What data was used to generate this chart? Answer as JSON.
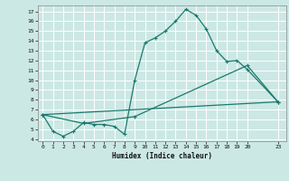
{
  "title": "",
  "xlabel": "Humidex (Indice chaleur)",
  "bg_color": "#cce8e4",
  "grid_color": "#ffffff",
  "line_color": "#1a7a6e",
  "xlim": [
    -0.5,
    23.8
  ],
  "ylim": [
    3.8,
    17.6
  ],
  "yticks": [
    4,
    5,
    6,
    7,
    8,
    9,
    10,
    11,
    12,
    13,
    14,
    15,
    16,
    17
  ],
  "xticks": [
    0,
    1,
    2,
    3,
    4,
    5,
    6,
    7,
    8,
    9,
    10,
    11,
    12,
    13,
    14,
    15,
    16,
    17,
    18,
    19,
    20,
    23
  ],
  "line1_x": [
    0,
    1,
    2,
    3,
    4,
    5,
    6,
    7,
    8,
    9,
    10,
    11,
    12,
    13,
    14,
    15,
    16,
    17,
    18,
    19,
    20,
    23
  ],
  "line1_y": [
    6.5,
    4.8,
    4.3,
    4.8,
    5.7,
    5.5,
    5.5,
    5.3,
    4.5,
    10.0,
    13.8,
    14.3,
    15.0,
    16.0,
    17.2,
    16.6,
    15.2,
    13.0,
    11.9,
    12.0,
    11.1,
    7.8
  ],
  "line2_x": [
    0,
    4,
    9,
    20,
    23
  ],
  "line2_y": [
    6.5,
    5.6,
    6.3,
    11.5,
    7.8
  ],
  "line3_x": [
    0,
    23
  ],
  "line3_y": [
    6.5,
    7.8
  ]
}
